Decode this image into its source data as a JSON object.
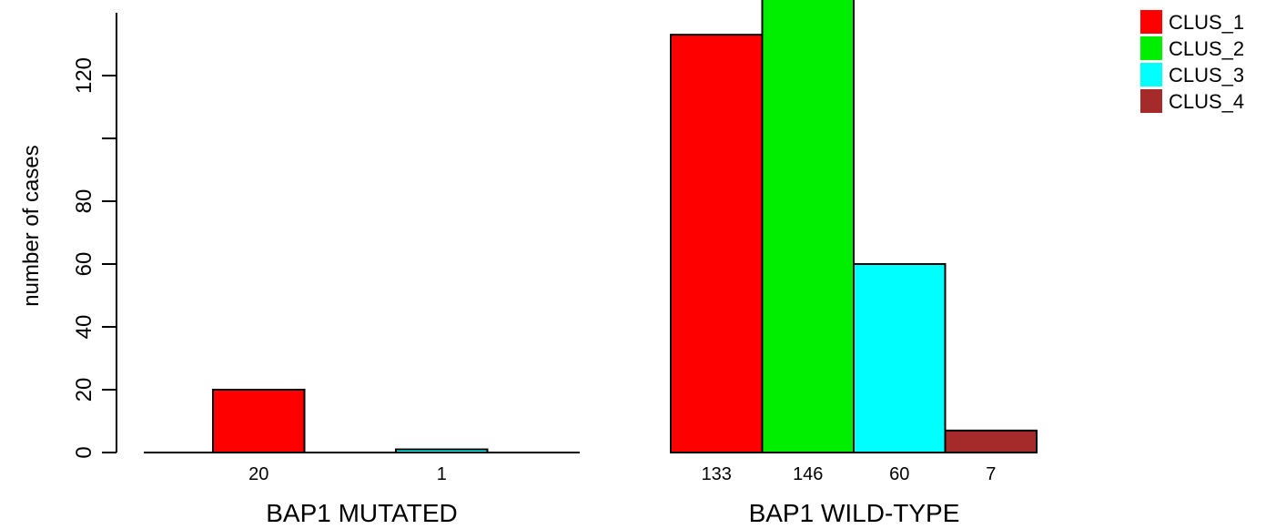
{
  "chart_data": {
    "type": "bar",
    "ylabel": "number of cases",
    "xlabel": "",
    "ylim": [
      0,
      140
    ],
    "yticks": [
      0,
      20,
      40,
      60,
      80,
      100,
      120
    ],
    "ytick_labels": [
      "0",
      "20",
      "40",
      "60",
      "80",
      "",
      "120"
    ],
    "legend_position": "top-right",
    "groups": [
      "BAP1 MUTATED",
      "BAP1 WILD-TYPE"
    ],
    "series": [
      {
        "name": "CLUS_1",
        "color": "#ff0000",
        "values": [
          20,
          133
        ]
      },
      {
        "name": "CLUS_2",
        "color": "#00ee00",
        "values": [
          0,
          146
        ]
      },
      {
        "name": "CLUS_3",
        "color": "#00ffff",
        "values": [
          1,
          60
        ]
      },
      {
        "name": "CLUS_4",
        "color": "#a52a2a",
        "values": [
          0,
          7
        ]
      }
    ],
    "count_labels": [
      [
        "20",
        "",
        "1",
        ""
      ],
      [
        "133",
        "146",
        "60",
        "7"
      ]
    ]
  }
}
